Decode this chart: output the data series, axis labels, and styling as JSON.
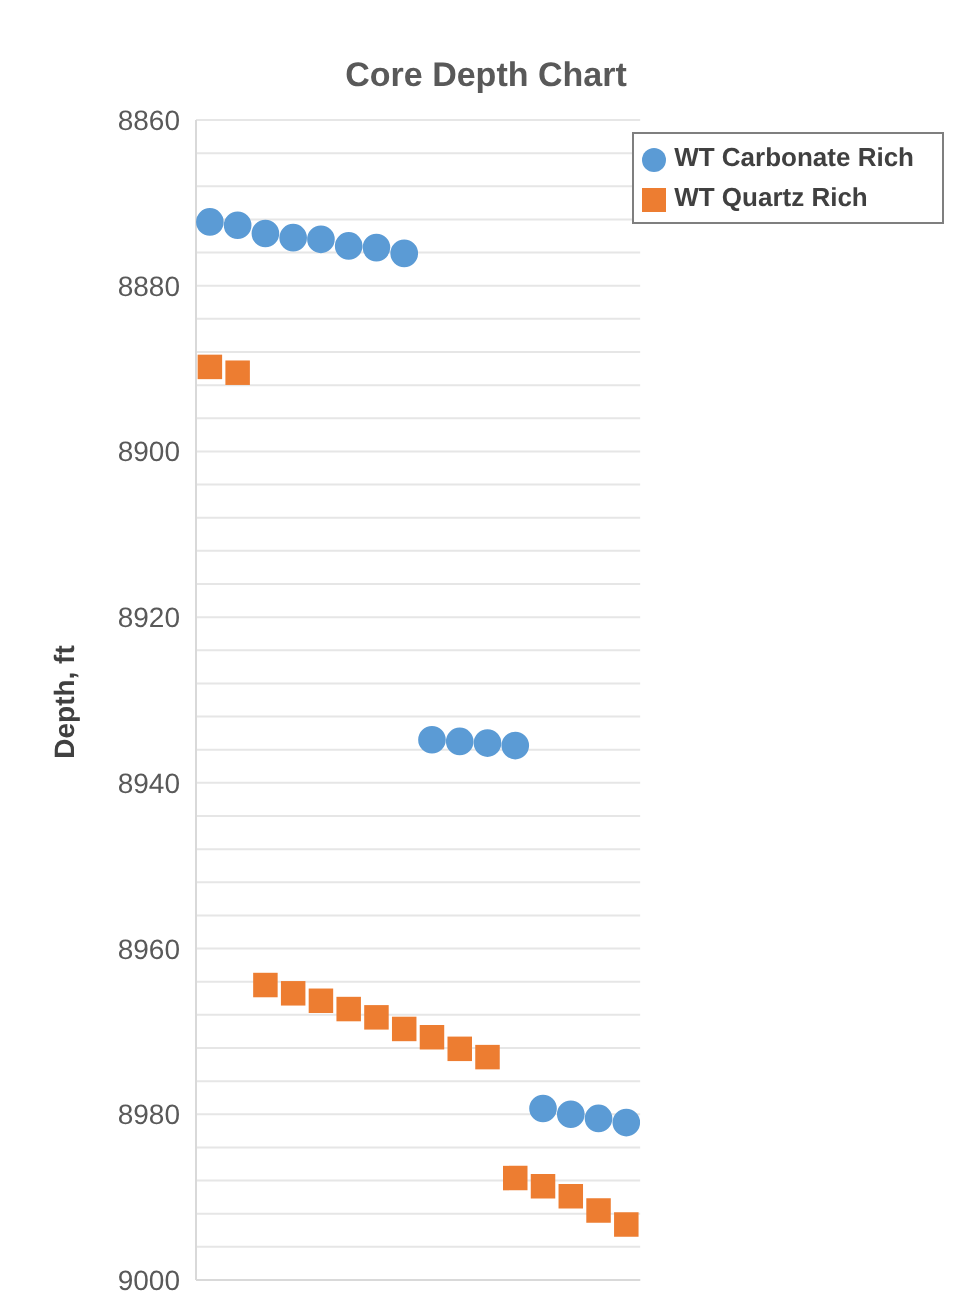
{
  "chart_data": {
    "type": "scatter",
    "title": "Core Depth Chart",
    "ylabel": "Depth, ft",
    "categories": [
      null,
      null,
      null,
      null,
      null,
      null,
      null,
      null,
      null,
      null,
      null,
      null,
      null,
      null,
      null,
      null
    ],
    "series": [
      {
        "name": "WT Carbonate Rich",
        "color": "#5b9bd5",
        "marker": "circle",
        "values": [
          8872.3,
          8872.7,
          8873.7,
          8874.2,
          8874.4,
          8875.2,
          8875.4,
          8876.1,
          8934.8,
          8935.0,
          8935.2,
          8935.5,
          8979.3,
          8980.0,
          8980.5,
          8981.0
        ]
      },
      {
        "name": "WT Quartz Rich",
        "color": "#ed7d31",
        "marker": "square",
        "values": [
          8889.8,
          8890.5,
          8964.4,
          8965.4,
          8966.3,
          8967.3,
          8968.3,
          8969.7,
          8970.7,
          8972.1,
          8973.1,
          8987.7,
          8988.7,
          8989.9,
          8991.6,
          8993.3
        ]
      }
    ],
    "ylim": [
      9000,
      8860
    ],
    "yticks": [
      8860,
      {
        "value": 8864,
        "label": null
      },
      {
        "value": 8868,
        "label": null
      },
      {
        "value": 8872,
        "label": null
      },
      {
        "value": 8876,
        "label": null
      },
      8880,
      {
        "value": 8884,
        "label": null
      },
      {
        "value": 8888,
        "label": null
      },
      {
        "value": 8892,
        "label": null
      },
      {
        "value": 8896,
        "label": null
      },
      8900,
      {
        "value": 8904,
        "label": null
      },
      {
        "value": 8908,
        "label": null
      },
      {
        "value": 8912,
        "label": null
      },
      {
        "value": 8916,
        "label": null
      },
      8920,
      {
        "value": 8924,
        "label": null
      },
      {
        "value": 8928,
        "label": null
      },
      {
        "value": 8932,
        "label": null
      },
      {
        "value": 8936,
        "label": null
      },
      8940,
      {
        "value": 8944,
        "label": null
      },
      {
        "value": 8948,
        "label": null
      },
      {
        "value": 8952,
        "label": null
      },
      {
        "value": 8956,
        "label": null
      },
      8960,
      {
        "value": 8964,
        "label": null
      },
      {
        "value": 8968,
        "label": null
      },
      {
        "value": 8972,
        "label": null
      },
      {
        "value": 8976,
        "label": null
      },
      8980,
      {
        "value": 8984,
        "label": null
      },
      {
        "value": 8988,
        "label": null
      },
      {
        "value": 8992,
        "label": null
      },
      {
        "value": 8996,
        "label": null
      },
      9000
    ],
    "grid": "y",
    "legend": "top right"
  }
}
